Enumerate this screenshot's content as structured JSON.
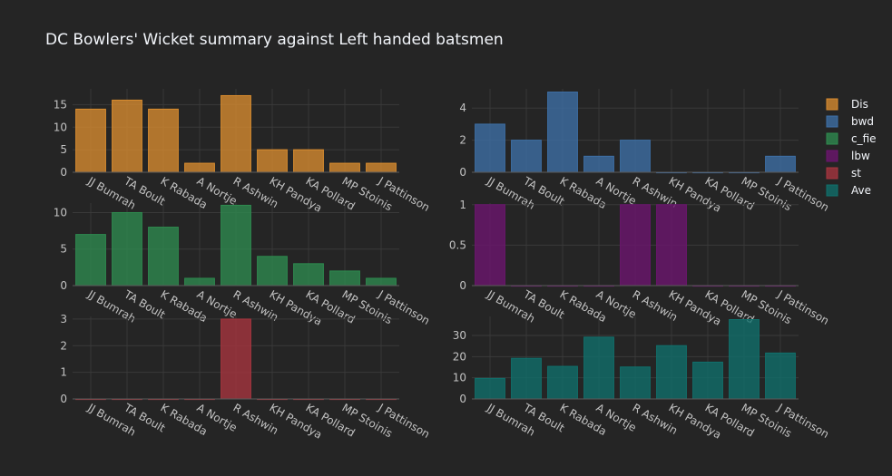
{
  "title": "DC Bowlers' Wicket summary against Left handed batsmen",
  "chart_data": {
    "type": "bar",
    "layout": "subplots-3x2",
    "categories": [
      "JJ Bumrah",
      "TA Boult",
      "K Rabada",
      "A Nortje",
      "R Ashwin",
      "KH Pandya",
      "KA Pollard",
      "MP Stoinis",
      "J Pattinson"
    ],
    "legend_position": "right",
    "grid": true,
    "series": [
      {
        "name": "Dis",
        "color": "#d98c2f",
        "values": [
          14,
          16,
          14,
          2,
          17,
          5,
          5,
          2,
          2
        ],
        "ylim": [
          0,
          18.5
        ],
        "yticks": [
          0,
          5,
          10,
          15
        ]
      },
      {
        "name": "bwd",
        "color": "#3d6fa6",
        "values": [
          3,
          2,
          5,
          1,
          2,
          0,
          0,
          0,
          1
        ],
        "ylim": [
          0,
          5.2
        ],
        "yticks": [
          0,
          2,
          4
        ]
      },
      {
        "name": "c_fie",
        "color": "#2e8b4f",
        "values": [
          7,
          10,
          8,
          1,
          11,
          4,
          3,
          2,
          1
        ],
        "ylim": [
          0,
          11.3
        ],
        "yticks": [
          0,
          5,
          10
        ]
      },
      {
        "name": "lbw",
        "color": "#6d1470",
        "values": [
          1,
          0,
          0,
          0,
          1,
          1,
          0,
          0,
          0
        ],
        "ylim": [
          0,
          1.02
        ],
        "yticks": [
          0,
          0.5,
          1
        ]
      },
      {
        "name": "st",
        "color": "#a8353f",
        "values": [
          0,
          0,
          0,
          0,
          3,
          0,
          0,
          0,
          0
        ],
        "ylim": [
          0,
          3.1
        ],
        "yticks": [
          0,
          1,
          2,
          3
        ]
      },
      {
        "name": "Ave",
        "color": "#10706c",
        "values": [
          9.7,
          19.2,
          15.4,
          29.2,
          15.1,
          25.2,
          17.4,
          37.5,
          21.7
        ],
        "ylim": [
          0,
          39
        ],
        "yticks": [
          0,
          10,
          20,
          30
        ]
      }
    ]
  }
}
